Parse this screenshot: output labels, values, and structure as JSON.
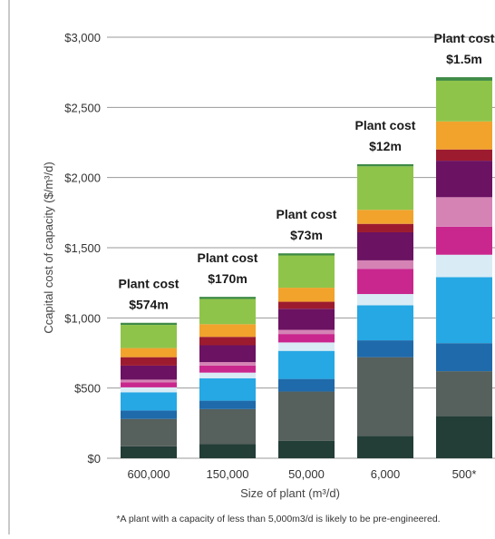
{
  "chart_data": {
    "type": "bar",
    "stacked": true,
    "ylabel": "Ccapital cost of capacity  ($/m³/d)",
    "xlabel": "Size of plant (m³/d)",
    "ylim": [
      0,
      3000
    ],
    "yticks": [
      {
        "value": 0,
        "label": "$0"
      },
      {
        "value": 500,
        "label": "$500"
      },
      {
        "value": 1000,
        "label": "$1,000"
      },
      {
        "value": 1500,
        "label": "$1,500"
      },
      {
        "value": 2000,
        "label": "$2,000"
      },
      {
        "value": 2500,
        "label": "$2,500"
      },
      {
        "value": 3000,
        "label": "$3,000"
      }
    ],
    "grid": true,
    "categories": [
      "600,000",
      "150,000",
      "50,000",
      "6,000",
      "500*"
    ],
    "annotations": [
      {
        "line1": "Plant cost",
        "line2": "$574m"
      },
      {
        "line1": "Plant cost",
        "line2": "$170m"
      },
      {
        "line1": "Plant cost",
        "line2": "$73m"
      },
      {
        "line1": "Plant cost",
        "line2": "$12m"
      },
      {
        "line1": "Plant cost",
        "line2": "$1.5m"
      }
    ],
    "series": [
      {
        "color": "#233d37",
        "values": [
          85,
          100,
          125,
          160,
          300
        ]
      },
      {
        "color": "#56605c",
        "values": [
          195,
          250,
          350,
          560,
          320
        ]
      },
      {
        "color": "#1f6aaa",
        "values": [
          60,
          60,
          90,
          120,
          200
        ]
      },
      {
        "color": "#26a8e4",
        "values": [
          130,
          160,
          200,
          250,
          470
        ]
      },
      {
        "color": "#d9ecf6",
        "values": [
          35,
          40,
          60,
          80,
          160
        ]
      },
      {
        "color": "#c9278e",
        "values": [
          35,
          50,
          60,
          180,
          200
        ]
      },
      {
        "color": "#d583b5",
        "values": [
          20,
          25,
          30,
          60,
          210
        ]
      },
      {
        "color": "#6b1262",
        "values": [
          100,
          120,
          150,
          200,
          260
        ]
      },
      {
        "color": "#9d1b2f",
        "values": [
          60,
          60,
          50,
          60,
          80
        ]
      },
      {
        "color": "#f1a32c",
        "values": [
          65,
          90,
          100,
          100,
          200
        ]
      },
      {
        "color": "#8fc44a",
        "values": [
          165,
          180,
          230,
          310,
          290
        ]
      },
      {
        "color": "#3f8b46",
        "values": [
          15,
          15,
          15,
          15,
          25
        ]
      }
    ]
  },
  "footnote": "*A plant with a capacity of less than 5,000m3/d is likely to be pre-engineered."
}
